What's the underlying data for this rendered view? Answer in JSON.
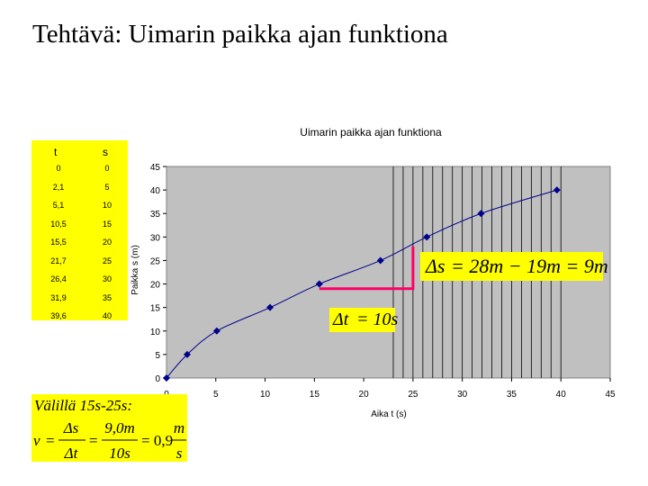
{
  "slide": {
    "title": "Tehtävä: Uimarin paikka ajan funktiona"
  },
  "table": {
    "headers": [
      "t",
      "s"
    ],
    "rows": [
      [
        "0",
        "0"
      ],
      [
        "2,1",
        "5"
      ],
      [
        "5,1",
        "10"
      ],
      [
        "10,5",
        "15"
      ],
      [
        "15,5",
        "20"
      ],
      [
        "21,7",
        "25"
      ],
      [
        "26,4",
        "30"
      ],
      [
        "31,9",
        "35"
      ],
      [
        "39,6",
        "40"
      ]
    ]
  },
  "chart_data": {
    "type": "scatter",
    "title": "Uimarin paikka ajan funktiona",
    "xlabel": "Aika t (s)",
    "ylabel": "Paikka s (m)",
    "xlim": [
      0,
      45
    ],
    "ylim": [
      0,
      45
    ],
    "xticks": [
      "0",
      "5",
      "10",
      "15",
      "20",
      "25",
      "30",
      "35",
      "40",
      "45"
    ],
    "yticks": [
      "0",
      "5",
      "10",
      "15",
      "20",
      "25",
      "30",
      "35",
      "40",
      "45"
    ],
    "series": [
      {
        "x": [
          0,
          2.1,
          5.1,
          10.5,
          15.5,
          21.7,
          26.4,
          31.9,
          39.6
        ],
        "y": [
          0,
          5,
          10,
          15,
          20,
          25,
          30,
          35,
          40
        ]
      }
    ],
    "grid": "vertical lines every 1 s from 23 to 40",
    "colors": {
      "plot_bg": "#c0c0c0",
      "line": "#00008b",
      "marker": "#00008b",
      "annotation": "#ff0066",
      "highlight": "#ffff00"
    }
  },
  "annotations": {
    "ds_equation": {
      "lhs": "Δs",
      "rhs": "= 28m − 19m = 9m"
    },
    "dt_equation": {
      "lhs": "Δt",
      "rhs": "= 10s"
    },
    "delta_segment": {
      "x_start": 15.5,
      "x_end": 25,
      "y_start": 19,
      "y_end": 28
    },
    "solution": {
      "heading": "Välillä 15s-25s:",
      "v": "v",
      "eq": "=",
      "frac1_num": "Δs",
      "frac1_den": "Δt",
      "frac2_num": "9,0m",
      "frac2_den": "10s",
      "result": "= 0,9",
      "unit_num": "m",
      "unit_den": "s"
    }
  }
}
